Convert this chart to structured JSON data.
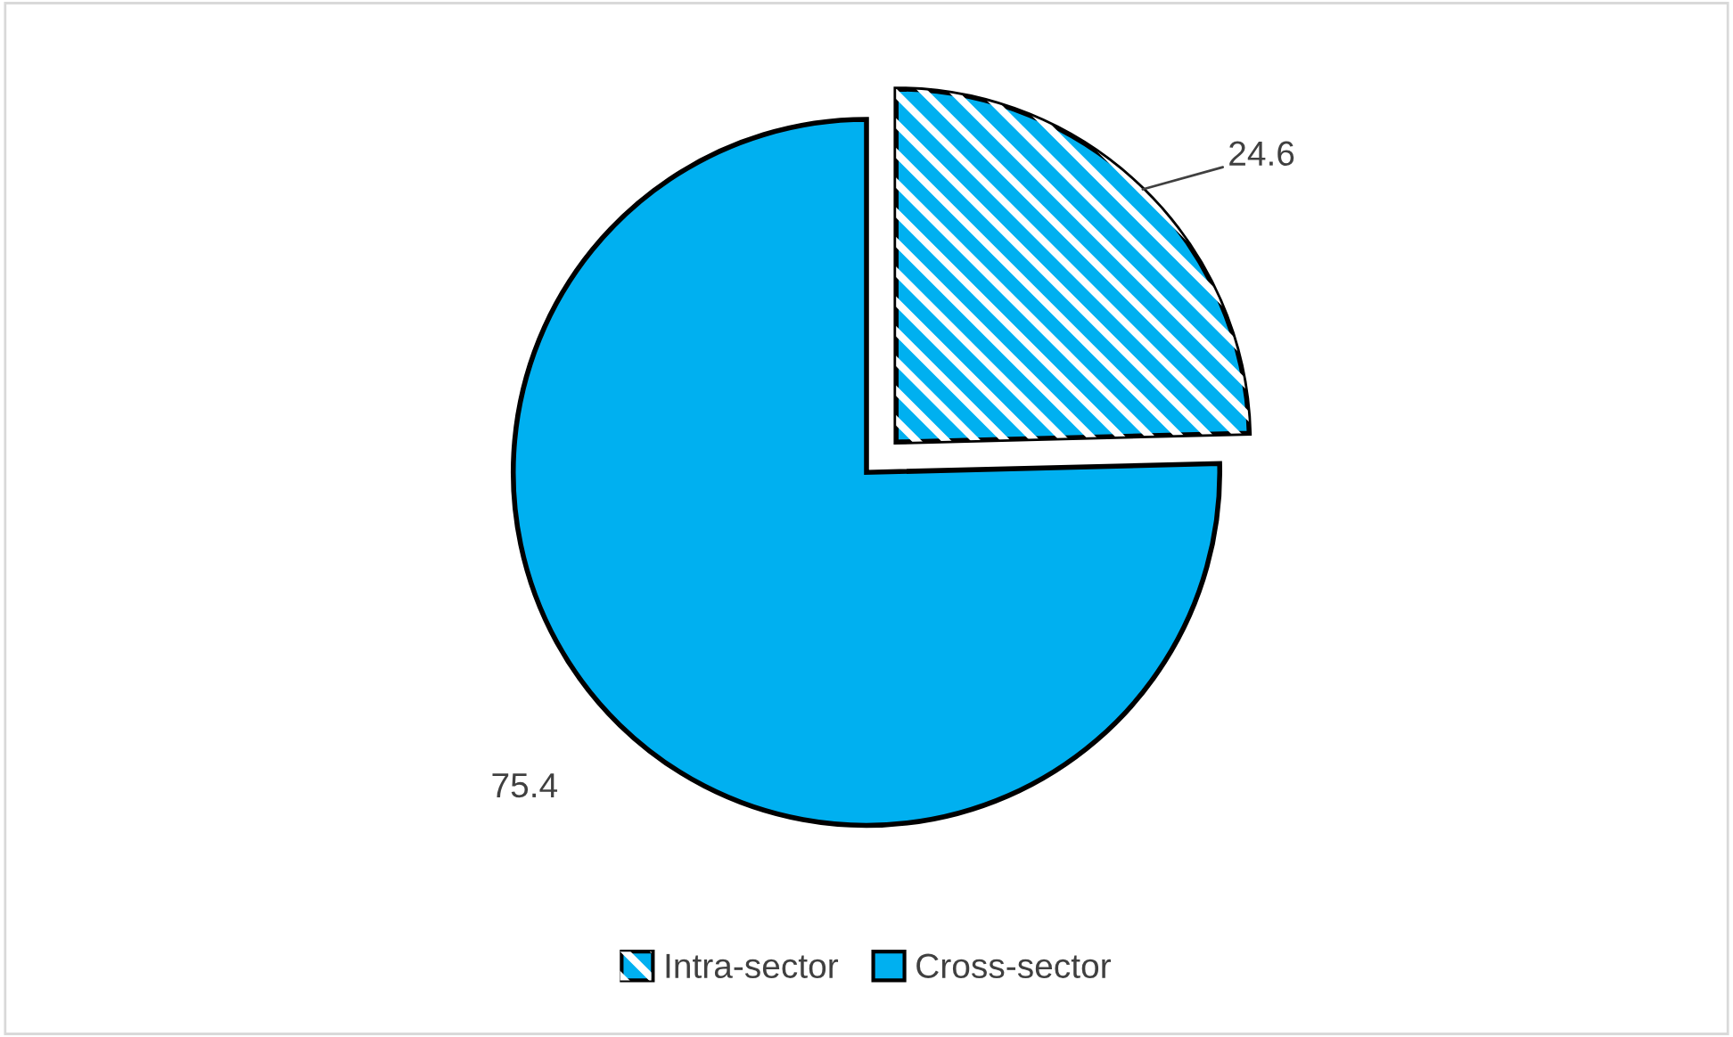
{
  "chart_data": {
    "type": "pie",
    "categories": [
      "Intra-sector",
      "Cross-sector"
    ],
    "values": [
      24.6,
      75.4
    ],
    "colors": [
      "#00b0f0",
      "#00b0f0"
    ],
    "data_labels": true,
    "legend": "bottom"
  }
}
